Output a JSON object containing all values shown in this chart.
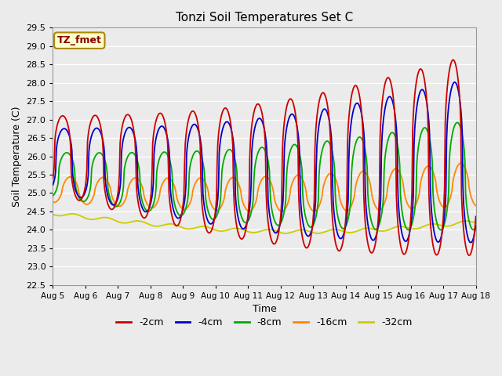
{
  "title": "Tonzi Soil Temperatures Set C",
  "xlabel": "Time",
  "ylabel": "Soil Temperature (C)",
  "ylim": [
    22.5,
    29.5
  ],
  "background_color": "#ebebeb",
  "plot_bg_color": "#ebebeb",
  "series": {
    "-2cm": {
      "color": "#cc0000",
      "lw": 1.3
    },
    "-4cm": {
      "color": "#0000cc",
      "lw": 1.3
    },
    "-8cm": {
      "color": "#00aa00",
      "lw": 1.3
    },
    "-16cm": {
      "color": "#ff8800",
      "lw": 1.3
    },
    "-32cm": {
      "color": "#cccc00",
      "lw": 1.3
    }
  },
  "xtick_labels": [
    "Aug 5",
    "Aug 6",
    "Aug 7",
    "Aug 8",
    "Aug 9",
    "Aug 10",
    "Aug 11",
    "Aug 12",
    "Aug 13",
    "Aug 14",
    "Aug 15",
    "Aug 16",
    "Aug 17",
    "Aug 18"
  ],
  "annotation_text": "TZ_fmet",
  "annotation_bg": "#ffffcc",
  "annotation_border": "#aa8800",
  "days": 13.0,
  "pts_per_day": 48
}
